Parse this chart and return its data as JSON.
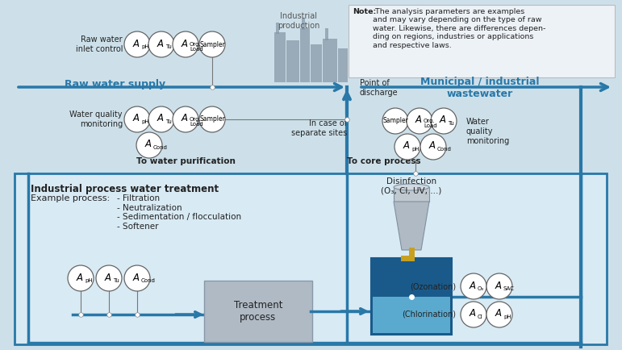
{
  "bg_color": "#cde0ea",
  "note_bg": "#e8eef4",
  "inner_box_bg": "#d8eaf4",
  "blue_pipe": "#2878a8",
  "gray_factory": "#8898a8",
  "circle_bg": "#ffffff",
  "circle_border": "#666666",
  "gray_box_fill": "#b0bac4",
  "gray_box_border": "#8898a8",
  "tank_dark": "#1a5a8a",
  "tank_light": "#4890c0",
  "tank_water": "#5aaad0",
  "yellow_pipe": "#c8a020",
  "text_dark": "#222222",
  "text_blue": "#1a5a8a",
  "arrow_blue": "#2878a8",
  "note_text_bold": "Note:",
  "note_text_body": " The analysis parameters are examples\nand may vary depending on the type of raw\nwater. Likewise, there are differences depen-\nding on regions, industries or applications\nand respective laws.",
  "raw_water_label": "Raw water\ninlet control",
  "raw_water_supply": "Raw water supply",
  "water_quality_left": "Water quality\nmonitoring",
  "to_water_purif": "To water purification",
  "industrial_prod": "Industrial\nproduction",
  "point_discharge": "Point of\ndischarge",
  "municipal_ww": "Municipal / industrial\nwastewater",
  "in_case": "In case of\nseparate sites",
  "water_quality_right": "Water\nquality\nmonitoring",
  "to_core": "To core process",
  "inner_title1": "Industrial process water treatment",
  "inner_title2": "Example process:",
  "inner_items": "- Filtration\n- Neutralization\n- Sedimentation / flocculation\n- Softener",
  "disinfection_label": "Disinfection\n(O₃, Cl, UV, ...)",
  "treatment_label": "Treatment\nprocess",
  "ozonation_label": "(Ozonation)",
  "chlorination_label": "(Chlorination)"
}
